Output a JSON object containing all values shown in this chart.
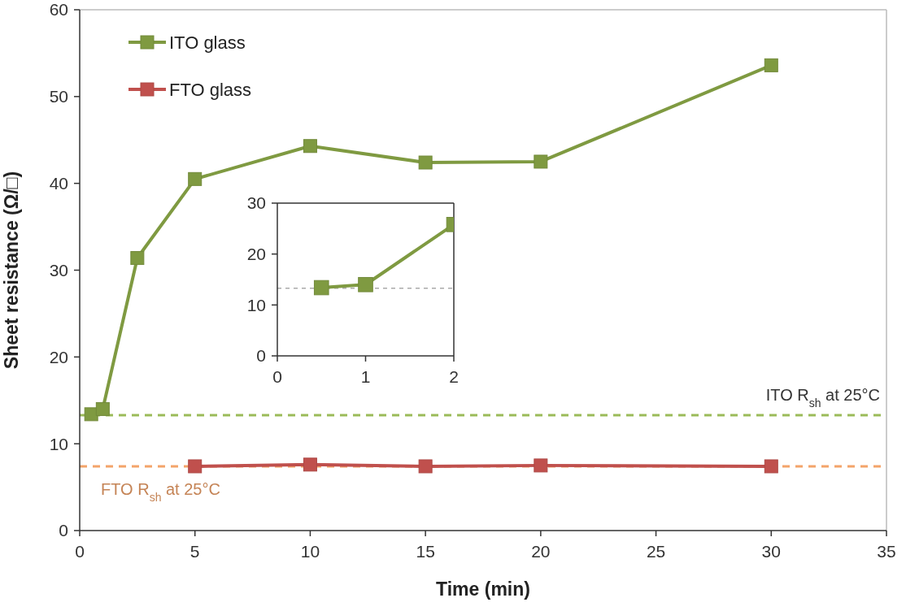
{
  "chart_data": [
    {
      "type": "line",
      "xlabel": "Time (min)",
      "ylabel": "Sheet resistance (Ω/□)",
      "xlim": [
        0,
        35
      ],
      "xticks": [
        0,
        5,
        10,
        15,
        20,
        25,
        30,
        35
      ],
      "ylim": [
        0,
        60
      ],
      "yticks": [
        0,
        10,
        20,
        30,
        40,
        50,
        60
      ],
      "grid": false,
      "legend": "top left",
      "marker": "square",
      "line_style": "solid",
      "series": [
        {
          "name": "ITO glass",
          "color": "#7f9a41",
          "x": [
            0.5,
            1,
            2.5,
            5,
            10,
            15,
            20,
            30
          ],
          "values": [
            13.4,
            14.0,
            31.4,
            40.5,
            44.3,
            42.4,
            42.5,
            53.6
          ]
        },
        {
          "name": "FTO glass",
          "color": "#c0504d",
          "x": [
            5,
            10,
            15,
            20,
            30
          ],
          "values": [
            7.4,
            7.6,
            7.4,
            7.5,
            7.4
          ]
        }
      ],
      "ref_lines": [
        {
          "axis": "y",
          "value": 13.3,
          "label": "ITO R$_{sh}$ at 25°C",
          "color": "#9bbb59",
          "line_style": "dashed"
        },
        {
          "axis": "y",
          "value": 7.4,
          "label": "FTO R$_{sh}$ at 25°C",
          "color": "#f4a46a",
          "line_style": "dashed"
        }
      ]
    },
    {
      "type": "line",
      "xlim": [
        0,
        2
      ],
      "xticks": [
        0,
        1,
        2
      ],
      "ylim": [
        0,
        30
      ],
      "yticks": [
        0,
        10,
        20,
        30
      ],
      "grid": false,
      "legend": false,
      "marker": "square",
      "series": [
        {
          "color": "#7f9a41",
          "x": [
            0.5,
            1,
            2
          ],
          "values": [
            13.4,
            14.0,
            25.8
          ]
        }
      ],
      "ref_lines": [
        {
          "axis": "y",
          "value": 13.3,
          "color": "#aaaaaa",
          "line_style": "dashed"
        }
      ]
    }
  ]
}
